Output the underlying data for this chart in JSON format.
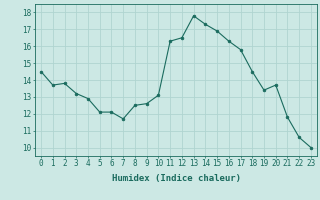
{
  "x": [
    0,
    1,
    2,
    3,
    4,
    5,
    6,
    7,
    8,
    9,
    10,
    11,
    12,
    13,
    14,
    15,
    16,
    17,
    18,
    19,
    20,
    21,
    22,
    23
  ],
  "y": [
    14.5,
    13.7,
    13.8,
    13.2,
    12.9,
    12.1,
    12.1,
    11.7,
    12.5,
    12.6,
    13.1,
    16.3,
    16.5,
    17.8,
    17.3,
    16.9,
    16.3,
    15.8,
    14.5,
    13.4,
    13.7,
    11.8,
    10.6,
    10.0
  ],
  "line_color": "#1a6b5e",
  "marker_color": "#1a6b5e",
  "bg_color": "#cce8e4",
  "grid_color": "#b0d4d0",
  "xlabel": "Humidex (Indice chaleur)",
  "ylabel_ticks": [
    10,
    11,
    12,
    13,
    14,
    15,
    16,
    17,
    18
  ],
  "xlim": [
    -0.5,
    23.5
  ],
  "ylim": [
    9.5,
    18.5
  ],
  "tick_color": "#1a6b5e",
  "xlabel_color": "#1a6b5e",
  "label_fontsize": 6.5,
  "tick_fontsize": 5.5
}
